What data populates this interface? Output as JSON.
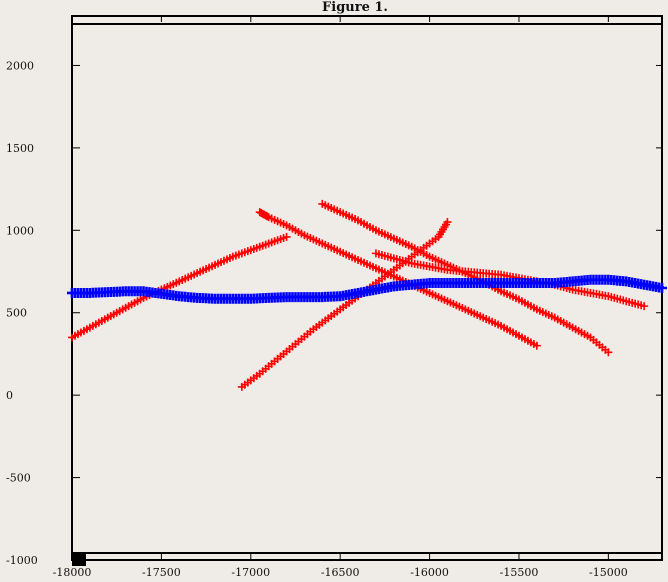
{
  "window": {
    "title": "Figure 1."
  },
  "colors": {
    "background": "#efebe6",
    "frame": "#000000",
    "red_series": "#ff0000",
    "blue_series": "#0000ff"
  },
  "chart_data": {
    "type": "scatter",
    "title": "",
    "xlabel": "",
    "ylabel": "",
    "xlim": [
      -18000,
      -14700
    ],
    "ylim": [
      -1000,
      2300
    ],
    "xticks": [
      -18000,
      -17500,
      -17000,
      -16500,
      -16000,
      -15500,
      -15000
    ],
    "xtick_labels": [
      "-18000",
      "-17500",
      "-17000",
      "-16500",
      "-16000",
      "-15500",
      "-15000"
    ],
    "yticks": [
      -1000,
      -500,
      0,
      500,
      1000,
      1500,
      2000
    ],
    "ytick_labels": [
      "-1000",
      "-500",
      "0",
      "500",
      "1000",
      "1500",
      "2000"
    ],
    "grid": false,
    "marker": "+",
    "series": [
      {
        "color": "#ff0000",
        "segments": [
          {
            "x": [
              -18000,
              -17900,
              -17800,
              -17700,
              -17600,
              -17500,
              -17400,
              -17300,
              -17200,
              -17100,
              -17000,
              -16900,
              -16800
            ],
            "y": [
              350,
              410,
              470,
              530,
              590,
              640,
              690,
              740,
              790,
              840,
              880,
              920,
              960
            ]
          },
          {
            "x": [
              -16950,
              -16900,
              -16800,
              -16700,
              -16600,
              -16500,
              -16400,
              -16300,
              -16200,
              -16100,
              -16000,
              -15900,
              -15800,
              -15700,
              -15600,
              -15500,
              -15400
            ],
            "y": [
              1110,
              1080,
              1030,
              970,
              920,
              870,
              820,
              770,
              720,
              670,
              620,
              570,
              520,
              470,
              420,
              360,
              300
            ]
          },
          {
            "x": [
              -16600,
              -16500,
              -16400,
              -16300,
              -16200,
              -16100,
              -16000,
              -15900,
              -15800,
              -15700,
              -15600,
              -15500,
              -15400,
              -15300,
              -15200,
              -15100,
              -15000
            ],
            "y": [
              1160,
              1110,
              1060,
              1000,
              950,
              900,
              840,
              790,
              740,
              690,
              630,
              580,
              520,
              470,
              410,
              350,
              260
            ]
          },
          {
            "x": [
              -17050,
              -16950,
              -16850,
              -16750,
              -16650,
              -16550,
              -16450,
              -16350,
              -16250,
              -16150,
              -16050,
              -15950,
              -15900
            ],
            "y": [
              50,
              130,
              220,
              310,
              400,
              480,
              560,
              640,
              720,
              800,
              880,
              960,
              1050
            ]
          },
          {
            "x": [
              -16300,
              -16200,
              -16100,
              -16000,
              -15900,
              -15800,
              -15700,
              -15600,
              -15500,
              -15400,
              -15300,
              -15200,
              -15100,
              -15000,
              -14900,
              -14800
            ],
            "y": [
              860,
              830,
              800,
              780,
              760,
              750,
              740,
              730,
              710,
              690,
              670,
              640,
              620,
              600,
              570,
              540
            ]
          }
        ]
      },
      {
        "color": "#0000ff",
        "segments": [
          {
            "x": [
              -18000,
              -17900,
              -17800,
              -17700,
              -17600,
              -17500,
              -17400,
              -17300,
              -17200,
              -17100,
              -17000,
              -16900,
              -16800,
              -16700,
              -16600,
              -16500,
              -16400,
              -16300,
              -16200,
              -16100,
              -16000,
              -15900,
              -15800,
              -15700,
              -15600,
              -15500,
              -15400,
              -15300,
              -15200,
              -15100,
              -15000,
              -14900,
              -14800,
              -14700
            ],
            "y": [
              620,
              620,
              625,
              630,
              630,
              615,
              600,
              590,
              585,
              585,
              585,
              590,
              595,
              595,
              595,
              600,
              620,
              640,
              660,
              670,
              680,
              680,
              680,
              680,
              680,
              680,
              680,
              680,
              690,
              700,
              700,
              690,
              670,
              650
            ]
          }
        ]
      }
    ]
  }
}
